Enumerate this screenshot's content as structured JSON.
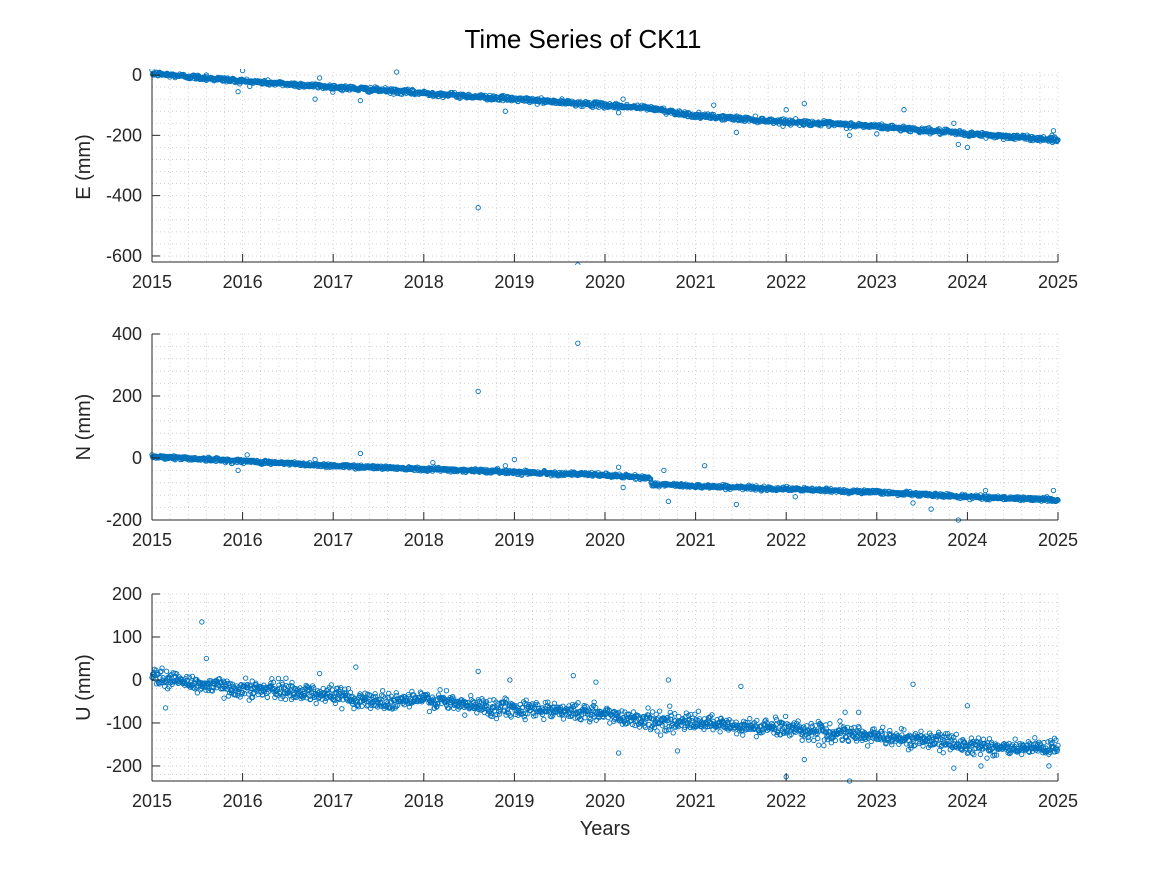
{
  "figure": {
    "title": "Time Series of CK11"
  },
  "chart_data": [
    {
      "type": "scatter",
      "ylabel": "E (mm)",
      "xlabel": "",
      "xlim": [
        2015,
        2025
      ],
      "ylim": [
        -620,
        10
      ],
      "xticks": [
        2015,
        2016,
        2017,
        2018,
        2019,
        2020,
        2021,
        2022,
        2023,
        2024,
        2025
      ],
      "yticks": [
        -600,
        -400,
        -200,
        0
      ],
      "grid": "minor-dotted",
      "trend": [
        [
          2015.0,
          5
        ],
        [
          2016.0,
          -20
        ],
        [
          2017.0,
          -40
        ],
        [
          2018.0,
          -60
        ],
        [
          2019.0,
          -80
        ],
        [
          2020.0,
          -100
        ],
        [
          2020.5,
          -110
        ],
        [
          2021.0,
          -135
        ],
        [
          2022.0,
          -155
        ],
        [
          2023.0,
          -170
        ],
        [
          2024.0,
          -195
        ],
        [
          2025.0,
          -215
        ]
      ],
      "noise": 4,
      "outliers": [
        [
          2015.6,
          0
        ],
        [
          2016.0,
          15
        ],
        [
          2015.95,
          -55
        ],
        [
          2016.8,
          -80
        ],
        [
          2016.85,
          -10
        ],
        [
          2017.3,
          -85
        ],
        [
          2017.7,
          10
        ],
        [
          2018.6,
          -440
        ],
        [
          2018.9,
          -120
        ],
        [
          2019.7,
          -630
        ],
        [
          2020.2,
          -80
        ],
        [
          2020.15,
          -125
        ],
        [
          2021.2,
          -100
        ],
        [
          2021.45,
          -190
        ],
        [
          2022.0,
          -115
        ],
        [
          2022.2,
          -95
        ],
        [
          2022.7,
          -200
        ],
        [
          2023.0,
          -195
        ],
        [
          2023.3,
          -115
        ],
        [
          2023.85,
          -160
        ],
        [
          2023.9,
          -230
        ],
        [
          2024.0,
          -240
        ],
        [
          2024.95,
          -185
        ]
      ]
    },
    {
      "type": "scatter",
      "ylabel": "N (mm)",
      "xlabel": "",
      "xlim": [
        2015,
        2025
      ],
      "ylim": [
        -200,
        400
      ],
      "xticks": [
        2015,
        2016,
        2017,
        2018,
        2019,
        2020,
        2021,
        2022,
        2023,
        2024,
        2025
      ],
      "yticks": [
        -200,
        0,
        200,
        400
      ],
      "grid": "minor-dotted",
      "trend": [
        [
          2015.0,
          5
        ],
        [
          2016.0,
          -10
        ],
        [
          2017.0,
          -25
        ],
        [
          2018.0,
          -35
        ],
        [
          2019.0,
          -45
        ],
        [
          2020.0,
          -55
        ],
        [
          2020.5,
          -65
        ],
        [
          2020.52,
          -85
        ],
        [
          2021.0,
          -90
        ],
        [
          2022.0,
          -100
        ],
        [
          2023.0,
          -110
        ],
        [
          2024.0,
          -125
        ],
        [
          2025.0,
          -135
        ]
      ],
      "noise": 3,
      "outliers": [
        [
          2015.95,
          -40
        ],
        [
          2016.05,
          10
        ],
        [
          2016.8,
          -5
        ],
        [
          2017.3,
          15
        ],
        [
          2018.1,
          -15
        ],
        [
          2018.6,
          215
        ],
        [
          2018.9,
          -25
        ],
        [
          2019.0,
          -5
        ],
        [
          2019.7,
          370
        ],
        [
          2020.15,
          -30
        ],
        [
          2020.2,
          -95
        ],
        [
          2020.65,
          -40
        ],
        [
          2020.7,
          -140
        ],
        [
          2021.1,
          -25
        ],
        [
          2021.45,
          -150
        ],
        [
          2022.1,
          -125
        ],
        [
          2023.4,
          -145
        ],
        [
          2023.6,
          -165
        ],
        [
          2023.9,
          -200
        ],
        [
          2024.2,
          -105
        ],
        [
          2024.95,
          -105
        ]
      ]
    },
    {
      "type": "scatter",
      "ylabel": "U (mm)",
      "xlabel": "Years",
      "xlim": [
        2015,
        2025
      ],
      "ylim": [
        -235,
        200
      ],
      "xticks": [
        2015,
        2016,
        2017,
        2018,
        2019,
        2020,
        2021,
        2022,
        2023,
        2024,
        2025
      ],
      "yticks": [
        -200,
        -100,
        0,
        100,
        200
      ],
      "grid": "minor-dotted",
      "trend": [
        [
          2015.0,
          10
        ],
        [
          2015.5,
          -10
        ],
        [
          2016.0,
          -20
        ],
        [
          2016.5,
          -25
        ],
        [
          2017.0,
          -35
        ],
        [
          2017.5,
          -50
        ],
        [
          2018.0,
          -45
        ],
        [
          2018.5,
          -60
        ],
        [
          2019.0,
          -65
        ],
        [
          2019.5,
          -70
        ],
        [
          2020.0,
          -80
        ],
        [
          2020.5,
          -95
        ],
        [
          2021.0,
          -100
        ],
        [
          2021.5,
          -110
        ],
        [
          2022.0,
          -110
        ],
        [
          2022.5,
          -125
        ],
        [
          2023.0,
          -130
        ],
        [
          2023.5,
          -140
        ],
        [
          2024.0,
          -150
        ],
        [
          2024.5,
          -160
        ],
        [
          2025.0,
          -160
        ]
      ],
      "noise": 10,
      "outliers": [
        [
          2015.15,
          -65
        ],
        [
          2015.55,
          135
        ],
        [
          2015.6,
          50
        ],
        [
          2016.85,
          15
        ],
        [
          2017.25,
          30
        ],
        [
          2018.25,
          -25
        ],
        [
          2018.6,
          20
        ],
        [
          2018.95,
          0
        ],
        [
          2019.65,
          10
        ],
        [
          2019.9,
          -5
        ],
        [
          2020.15,
          -170
        ],
        [
          2020.7,
          0
        ],
        [
          2020.8,
          -165
        ],
        [
          2021.5,
          -15
        ],
        [
          2022.0,
          -225
        ],
        [
          2022.2,
          -185
        ],
        [
          2022.65,
          -75
        ],
        [
          2022.7,
          -235
        ],
        [
          2022.8,
          -75
        ],
        [
          2023.4,
          -10
        ],
        [
          2023.85,
          -205
        ],
        [
          2024.0,
          -60
        ],
        [
          2024.15,
          -200
        ],
        [
          2024.9,
          -200
        ]
      ]
    }
  ]
}
